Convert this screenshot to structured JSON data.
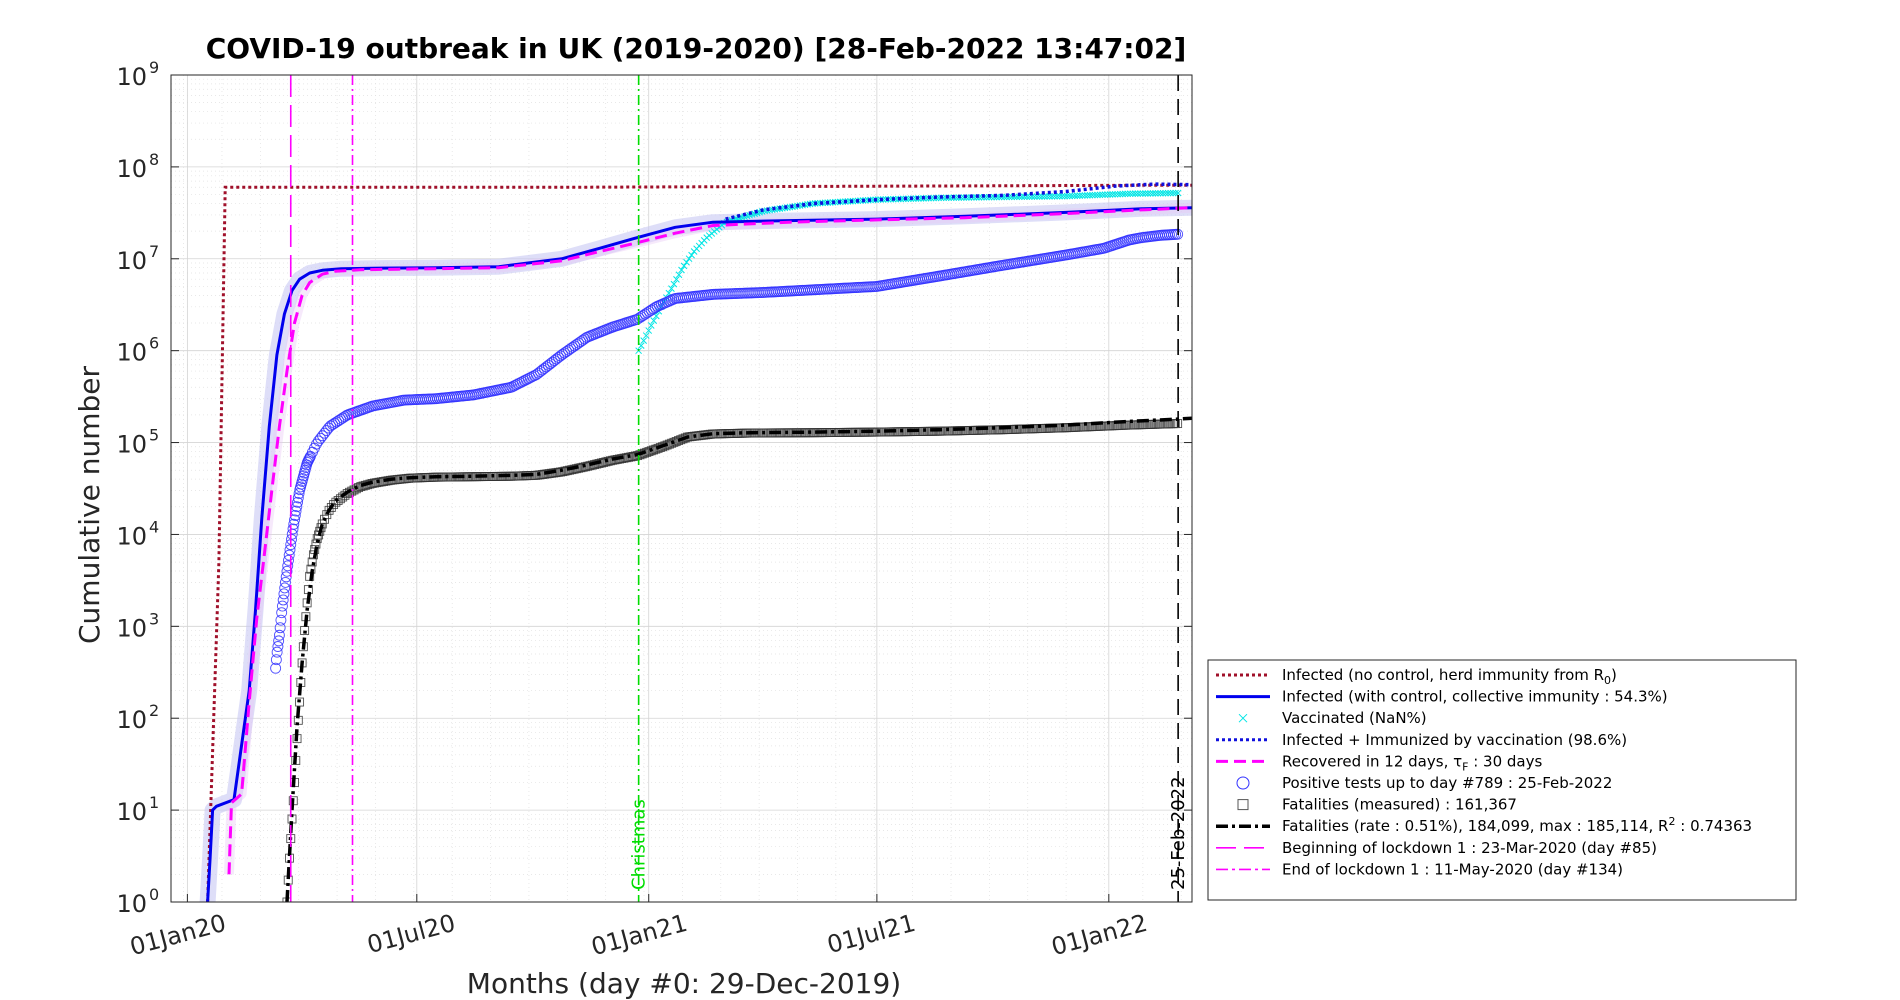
{
  "chart_data": {
    "type": "line",
    "title": "COVID-19 outbreak in UK (2019-2020) [28-Feb-2022 13:47:02]",
    "xlabel": "Months (day #0: 29-Dec-2019)",
    "ylabel": "Cumulative number",
    "yscale": "log",
    "ylim": [
      1,
      1000000000
    ],
    "xlim": [
      -10,
      800
    ],
    "grid": true,
    "legend_position": "bottom-right",
    "x_unit": "day",
    "x_ticks": [
      {
        "day": 3,
        "label": "01Jan20"
      },
      {
        "day": 185,
        "label": "01Jul20"
      },
      {
        "day": 369,
        "label": "01Jan21"
      },
      {
        "day": 550,
        "label": "01Jul21"
      },
      {
        "day": 734,
        "label": "01Jan22"
      }
    ],
    "y_ticks": [
      {
        "value": 1,
        "base": "10",
        "exp": "0"
      },
      {
        "value": 10,
        "base": "10",
        "exp": "1"
      },
      {
        "value": 100,
        "base": "10",
        "exp": "2"
      },
      {
        "value": 1000,
        "base": "10",
        "exp": "3"
      },
      {
        "value": 10000,
        "base": "10",
        "exp": "4"
      },
      {
        "value": 100000,
        "base": "10",
        "exp": "5"
      },
      {
        "value": 1000000,
        "base": "10",
        "exp": "6"
      },
      {
        "value": 10000000,
        "base": "10",
        "exp": "7"
      },
      {
        "value": 100000000,
        "base": "10",
        "exp": "8"
      },
      {
        "value": 1000000000,
        "base": "10",
        "exp": "9"
      }
    ],
    "vertical_lines": [
      {
        "name": "lockdown-start",
        "day": 85,
        "color": "#ff00ff",
        "dash": "22,8",
        "label": ""
      },
      {
        "name": "lockdown-end",
        "day": 134,
        "color": "#ff00ff",
        "dash": "10,4,2,4",
        "label": ""
      },
      {
        "name": "christmas",
        "day": 361,
        "color": "#00dd00",
        "dash": "10,4,2,4",
        "label": "Christmas"
      },
      {
        "name": "last-data",
        "day": 789,
        "color": "#000000",
        "dash": "16,8",
        "label": "25-Feb-2022"
      }
    ],
    "series": [
      {
        "name": "Infected (no control, herd immunity from R0)",
        "style": "dotted",
        "color": "#a0102a",
        "x": [
          19,
          28,
          33,
          60,
          300,
          450,
          600,
          750,
          800
        ],
        "y": [
          1,
          5000,
          60000000,
          60000000,
          60000000,
          61000000,
          62000000,
          63000000,
          63000000
        ]
      },
      {
        "name": "Infected (with control, collective immunity : 54.3%)",
        "style": "solid",
        "color": "#0000ee",
        "x": [
          19,
          21,
          23,
          26,
          40,
          52,
          57,
          62,
          68,
          74,
          80,
          86,
          92,
          100,
          110,
          125,
          150,
          200,
          250,
          300,
          330,
          360,
          390,
          420,
          480,
          550,
          620,
          700,
          760,
          800
        ],
        "y": [
          1,
          3,
          10,
          11,
          13,
          200,
          1500,
          15000,
          150000,
          900000,
          2500000,
          4500000,
          6000000,
          7000000,
          7500000,
          7800000,
          7900000,
          8000000,
          8200000,
          10000000,
          13000000,
          17000000,
          22000000,
          25000000,
          26000000,
          27000000,
          29000000,
          32000000,
          35000000,
          36000000
        ]
      },
      {
        "name": "Vaccinated (NaN%)",
        "style": "x-markers",
        "color": "#00e5e5",
        "x": [
          361,
          372,
          380,
          388,
          396,
          405,
          415,
          430,
          460,
          500,
          550,
          600,
          650,
          700,
          750,
          789,
          800
        ],
        "y": [
          1000000,
          2000000,
          3200000,
          5000000,
          8000000,
          12000000,
          17000000,
          25000000,
          33000000,
          40000000,
          44000000,
          46000000,
          47000000,
          48000000,
          51000000,
          52000000,
          52000000
        ]
      },
      {
        "name": "Infected + Immunized by vaccination (98.6%)",
        "style": "dotted",
        "color": "#1010dd",
        "x": [
          430,
          460,
          500,
          550,
          600,
          650,
          700,
          740,
          770,
          800
        ],
        "y": [
          27000000,
          34000000,
          40000000,
          44000000,
          47000000,
          49000000,
          54000000,
          62000000,
          65000000,
          64000000
        ]
      },
      {
        "name": "Recovered in 12 days, τF : 30 days",
        "style": "dashed",
        "color": "#ff00ff",
        "x": [
          36,
          38,
          46,
          52,
          58,
          64,
          70,
          76,
          82,
          88,
          94,
          100,
          110,
          120,
          140,
          170,
          200,
          250,
          300,
          330,
          360,
          390,
          420,
          480,
          550,
          620,
          700,
          760,
          800
        ],
        "y": [
          2,
          12,
          15,
          150,
          1200,
          6000,
          30000,
          150000,
          600000,
          2000000,
          4000000,
          5500000,
          6800000,
          7300000,
          7600000,
          7700000,
          7800000,
          8000000,
          9500000,
          12000000,
          15000000,
          19000000,
          23000000,
          25000000,
          26500000,
          28000000,
          31000000,
          34000000,
          36000000
        ]
      },
      {
        "name": "Positive tests up to day #789 : 25-Feb-2022",
        "style": "circle-markers",
        "color": "#3333ff",
        "x": [
          73,
          74,
          76,
          78,
          80,
          83,
          87,
          92,
          98,
          106,
          116,
          130,
          150,
          175,
          200,
          230,
          260,
          280,
          300,
          320,
          340,
          360,
          375,
          390,
          420,
          460,
          500,
          550,
          600,
          650,
          700,
          730,
          750,
          760,
          775,
          789
        ],
        "y": [
          350,
          500,
          800,
          1500,
          2500,
          5000,
          12000,
          30000,
          60000,
          100000,
          150000,
          200000,
          250000,
          290000,
          300000,
          330000,
          400000,
          550000,
          900000,
          1400000,
          1800000,
          2200000,
          3000000,
          3700000,
          4100000,
          4300000,
          4600000,
          5000000,
          6500000,
          8500000,
          11000000,
          13000000,
          16000000,
          17000000,
          18000000,
          18500000
        ]
      },
      {
        "name": "Fatalities (measured) : 161,367",
        "style": "square-markers",
        "color": "#111111",
        "x": [
          82,
          84,
          86,
          88,
          90,
          92,
          94,
          96,
          98,
          100,
          103,
          106,
          110,
          115,
          120,
          130,
          140,
          150,
          165,
          180,
          200,
          230,
          260,
          280,
          300,
          320,
          340,
          360,
          380,
          400,
          420,
          450,
          500,
          550,
          600,
          650,
          700,
          750,
          789
        ],
        "y": [
          1,
          3,
          8,
          20,
          60,
          150,
          400,
          900,
          1800,
          3500,
          6000,
          9000,
          13000,
          18000,
          22000,
          28000,
          33000,
          36000,
          39000,
          41000,
          42000,
          42500,
          43000,
          44000,
          48000,
          55000,
          64000,
          72000,
          90000,
          115000,
          124000,
          127000,
          128000,
          130000,
          133000,
          138000,
          145000,
          155000,
          161000
        ]
      },
      {
        "name": "Fatalities (rate : 0.51%), 184,099, max : 185,114, R2 : 0.74363",
        "style": "dash-dot",
        "color": "#000000",
        "x": [
          82,
          86,
          90,
          94,
          98,
          102,
          106,
          110,
          115,
          120,
          130,
          140,
          150,
          165,
          180,
          200,
          230,
          260,
          280,
          300,
          320,
          340,
          360,
          380,
          400,
          420,
          450,
          500,
          550,
          600,
          650,
          700,
          750,
          789,
          800
        ],
        "y": [
          1,
          10,
          80,
          400,
          1500,
          4000,
          8000,
          13000,
          18000,
          23000,
          29000,
          34000,
          37000,
          40000,
          41500,
          42500,
          43000,
          44000,
          45000,
          50000,
          57000,
          66000,
          74000,
          92000,
          115000,
          125000,
          128000,
          130000,
          133000,
          138000,
          145000,
          155000,
          170000,
          180000,
          184000
        ]
      }
    ],
    "legend": [
      {
        "label": "Infected (no control, herd immunity from R",
        "sub": "0",
        "tail": ")",
        "key": "dotted",
        "color": "#a0102a"
      },
      {
        "label": "Infected (with control, collective immunity : 54.3%)",
        "sub": "",
        "tail": "",
        "key": "solid",
        "color": "#0000ee"
      },
      {
        "label": "Vaccinated (NaN%)",
        "sub": "",
        "tail": "",
        "key": "x",
        "color": "#00e5e5"
      },
      {
        "label": "Infected + Immunized by vaccination (98.6%)",
        "sub": "",
        "tail": "",
        "key": "dotted",
        "color": "#1010dd"
      },
      {
        "label": "Recovered in 12 days, τ",
        "sub": "F",
        "tail": " : 30 days",
        "key": "dashed",
        "color": "#ff00ff"
      },
      {
        "label": "Positive tests up to day #789 : 25-Feb-2022",
        "sub": "",
        "tail": "",
        "key": "circle",
        "color": "#3333ff"
      },
      {
        "label": "Fatalities (measured) : 161,367",
        "sub": "",
        "tail": "",
        "key": "square",
        "color": "#111111"
      },
      {
        "label": "Fatalities (rate : 0.51%), 184,099, max : 185,114, R",
        "sup": "2",
        "tail": " : 0.74363",
        "key": "dashdot",
        "color": "#000000"
      },
      {
        "label": "Beginning of lockdown 1 : 23-Mar-2020 (day #85)",
        "sub": "",
        "tail": "",
        "key": "longdash",
        "color": "#ff00ff"
      },
      {
        "label": "End of lockdown 1 : 11-May-2020 (day #134)",
        "sub": "",
        "tail": "",
        "key": "dashdot",
        "color": "#ff00ff"
      }
    ]
  }
}
